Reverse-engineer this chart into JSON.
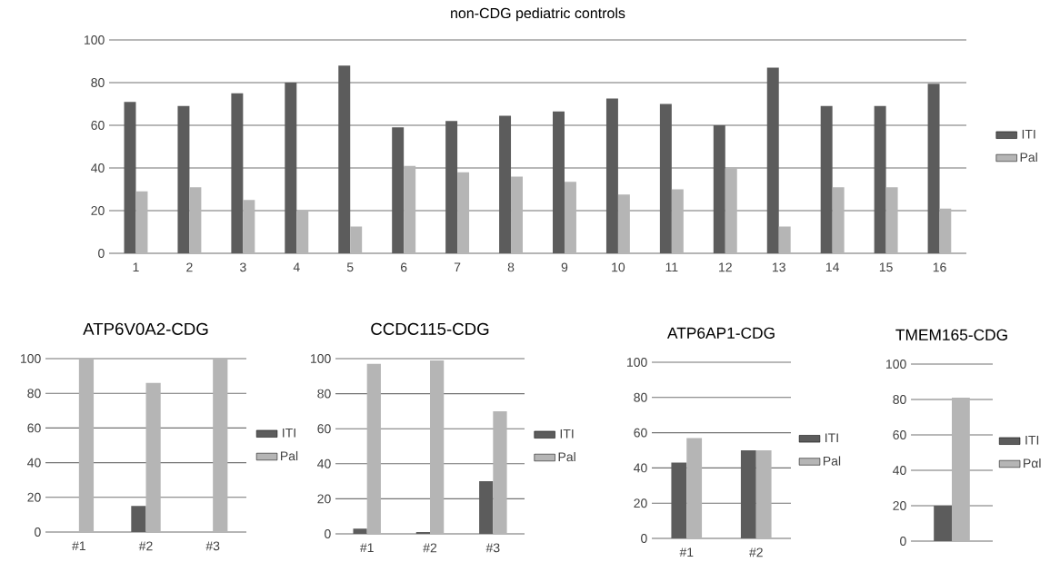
{
  "chart_data": [
    {
      "type": "bar",
      "title": "non-CDG pediatric  controls",
      "categories": [
        "1",
        "2",
        "3",
        "4",
        "5",
        "6",
        "7",
        "8",
        "9",
        "10",
        "11",
        "12",
        "13",
        "14",
        "15",
        "16"
      ],
      "series": [
        {
          "name": "ITI",
          "color": "#5c5c5c",
          "values": [
            71,
            69,
            75,
            80,
            88,
            59,
            62,
            64.5,
            66.5,
            72.5,
            70,
            60,
            87,
            69,
            69,
            79.5
          ]
        },
        {
          "name": "Pal",
          "color": "#b5b5b5",
          "values": [
            29,
            31,
            25,
            20,
            12.5,
            41,
            38,
            36,
            33.5,
            27.5,
            30,
            40,
            12.5,
            31,
            31,
            21
          ]
        }
      ],
      "ylim": [
        0,
        100
      ],
      "yticks": [
        0,
        20,
        40,
        60,
        80,
        100
      ],
      "grid": "y",
      "legend": "right"
    },
    {
      "type": "bar",
      "title": "ATP6V0A2-CDG",
      "categories": [
        "#1",
        "#2",
        "#3"
      ],
      "series": [
        {
          "name": "ITI",
          "color": "#5c5c5c",
          "values": [
            0,
            15,
            0
          ]
        },
        {
          "name": "Pal",
          "color": "#b5b5b5",
          "values": [
            100,
            86,
            100
          ]
        }
      ],
      "ylim": [
        0,
        100
      ],
      "yticks": [
        0,
        20,
        40,
        60,
        80,
        100
      ],
      "grid": "y",
      "legend": "right"
    },
    {
      "type": "bar",
      "title": "CCDC115-CDG",
      "categories": [
        "#1",
        "#2",
        "#3"
      ],
      "series": [
        {
          "name": "ITI",
          "color": "#5c5c5c",
          "values": [
            3,
            1,
            30
          ]
        },
        {
          "name": "Pal",
          "color": "#b5b5b5",
          "values": [
            97,
            99,
            70
          ]
        }
      ],
      "ylim": [
        0,
        100
      ],
      "yticks": [
        0,
        20,
        40,
        60,
        80,
        100
      ],
      "grid": "y",
      "legend": "right"
    },
    {
      "type": "bar",
      "title": "ATP6AP1-CDG",
      "categories": [
        "#1",
        "#2"
      ],
      "series": [
        {
          "name": "ITI",
          "color": "#5c5c5c",
          "values": [
            43,
            50
          ]
        },
        {
          "name": "Pal",
          "color": "#b5b5b5",
          "values": [
            57,
            50
          ]
        }
      ],
      "ylim": [
        0,
        100
      ],
      "yticks": [
        0,
        20,
        40,
        60,
        80,
        100
      ],
      "grid": "y",
      "legend": "right"
    },
    {
      "type": "bar",
      "title": "TMEM165-CDG",
      "categories": [
        null
      ],
      "series": [
        {
          "name": "ITI",
          "color": "#5c5c5c",
          "values": [
            20
          ]
        },
        {
          "name": "Pαl",
          "color": "#b5b5b5",
          "values": [
            81
          ]
        }
      ],
      "ylim": [
        0,
        100
      ],
      "yticks": [
        0,
        20,
        40,
        60,
        80,
        100
      ],
      "grid": "y",
      "legend": "right"
    }
  ]
}
